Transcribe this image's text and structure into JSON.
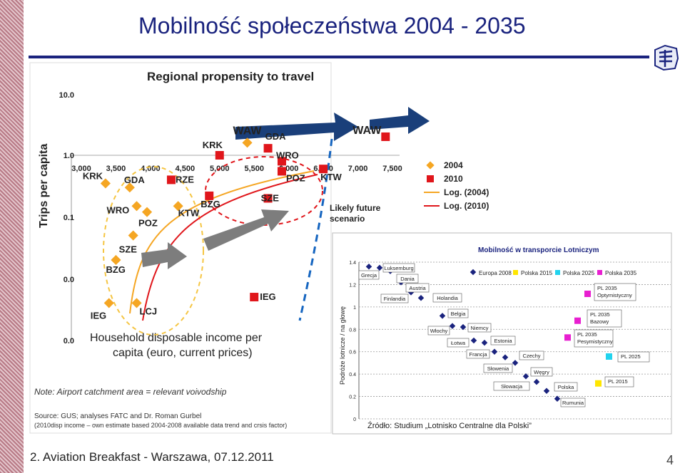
{
  "slide": {
    "title": "Mobilność społeczeństwa 2004 - 2035",
    "footer": "2. Aviation Breakfast - Warszawa, 07.12.2011",
    "page_number": "4"
  },
  "chart_data": [
    {
      "type": "scatter",
      "title": "Regional propensity to travel",
      "xlabel": "Household disposable income per capita (euro, current prices)",
      "ylabel": "Trips per capita",
      "x_ticks": [
        "3,000",
        "3,500",
        "4,000",
        "4,500",
        "5,000",
        "5,500",
        "6,000",
        "6,500",
        "7,000",
        "7,500"
      ],
      "y_ticks": [
        "10.0",
        "1.0",
        "0.1",
        "0.0",
        "0.0"
      ],
      "legend": [
        "2004",
        "2010",
        "Log. (2004)",
        "Log. (2010)"
      ],
      "series": [
        {
          "name": "2004",
          "color": "#f5a623",
          "points": [
            {
              "label": "KRK",
              "x": 3350,
              "y": 0.35
            },
            {
              "label": "GDA",
              "x": 3700,
              "y": 0.3
            },
            {
              "label": "WRO",
              "x": 3800,
              "y": 0.15
            },
            {
              "label": "POZ",
              "x": 3950,
              "y": 0.12
            },
            {
              "label": "SZE",
              "x": 3750,
              "y": 0.05
            },
            {
              "label": "BZG",
              "x": 3500,
              "y": 0.02
            },
            {
              "label": "IEG",
              "x": 3400,
              "y": 0.004
            },
            {
              "label": "LCJ",
              "x": 3800,
              "y": 0.004
            },
            {
              "label": "KTW",
              "x": 4400,
              "y": 0.15
            },
            {
              "label": "WAW",
              "x": 5400,
              "y": 1.6
            }
          ]
        },
        {
          "name": "2010",
          "color": "#e0161b",
          "points": [
            {
              "label": "RZE",
              "x": 4300,
              "y": 0.4
            },
            {
              "label": "KRK",
              "x": 5000,
              "y": 1.0
            },
            {
              "label": "GDA",
              "x": 5700,
              "y": 1.3
            },
            {
              "label": "WRO",
              "x": 5900,
              "y": 0.8
            },
            {
              "label": "POZ",
              "x": 5900,
              "y": 0.55
            },
            {
              "label": "KTW",
              "x": 6500,
              "y": 0.6
            },
            {
              "label": "BZG",
              "x": 4850,
              "y": 0.22
            },
            {
              "label": "SZE",
              "x": 5700,
              "y": 0.2
            },
            {
              "label": "IEG",
              "x": 5500,
              "y": 0.005
            },
            {
              "label": "WAW",
              "x": 7400,
              "y": 2.0
            }
          ]
        }
      ],
      "annotations": [
        "Likely future scenario"
      ],
      "notes": [
        "Note: Airport catchment area = relevant voivodship",
        "Source: GUS; analyses FATC and Dr. Roman Gurbel",
        "(2010disp income – own estimate based 2004-2008 available data trend and crsis factor)"
      ]
    },
    {
      "type": "scatter",
      "title": "Mobilność w transporcie Lotniczym",
      "ylabel": "Podróże lotnicze / na głowę",
      "ylim": [
        0,
        1.4
      ],
      "y_ticks": [
        "1.4",
        "1.2",
        "1",
        "0.8",
        "0.6",
        "0.4",
        "0.2",
        "0"
      ],
      "legend": [
        "Europa 2008",
        "Polska 2015",
        "Polska 2025",
        "Polska 2035"
      ],
      "series": [
        {
          "name": "Europa 2008",
          "color": "#1a237e",
          "points": [
            {
              "label": "Grecja",
              "y": 1.36
            },
            {
              "label": "Luksemburg",
              "y": 1.35
            },
            {
              "label": "Dania",
              "y": 1.32
            },
            {
              "label": "Austria",
              "y": 1.22
            },
            {
              "label": "Finlandia",
              "y": 1.13
            },
            {
              "label": "Holandia",
              "y": 1.08
            },
            {
              "label": "Belgia",
              "y": 0.92
            },
            {
              "label": "Włochy",
              "y": 0.83
            },
            {
              "label": "Niemcy",
              "y": 0.82
            },
            {
              "label": "Łotwa",
              "y": 0.7
            },
            {
              "label": "Estonia",
              "y": 0.68
            },
            {
              "label": "Francja",
              "y": 0.6
            },
            {
              "label": "Słowenia",
              "y": 0.55
            },
            {
              "label": "Czechy",
              "y": 0.5
            },
            {
              "label": "Węgry",
              "y": 0.38
            },
            {
              "label": "Słowacja",
              "y": 0.33
            },
            {
              "label": "Polska",
              "y": 0.25
            },
            {
              "label": "Rumunia",
              "y": 0.18
            }
          ]
        },
        {
          "name": "Polska 2015",
          "color": "#ffe600",
          "points": [
            {
              "label": "PL 2015",
              "y": 0.32
            }
          ]
        },
        {
          "name": "Polska 2025",
          "color": "#22d3ee",
          "points": [
            {
              "label": "PL 2025",
              "y": 0.56
            }
          ]
        },
        {
          "name": "Polska 2035",
          "color": "#e81fd0",
          "points": [
            {
              "label": "PL 2035\nOptymistyczny",
              "y": 1.12
            },
            {
              "label": "PL 2035\nBazowy",
              "y": 0.88
            },
            {
              "label": "PL 2035\nPesymistyczny",
              "y": 0.73
            }
          ]
        }
      ],
      "source": "Źródło: Studium „Lotnisko Centralne dla Polski”"
    }
  ]
}
